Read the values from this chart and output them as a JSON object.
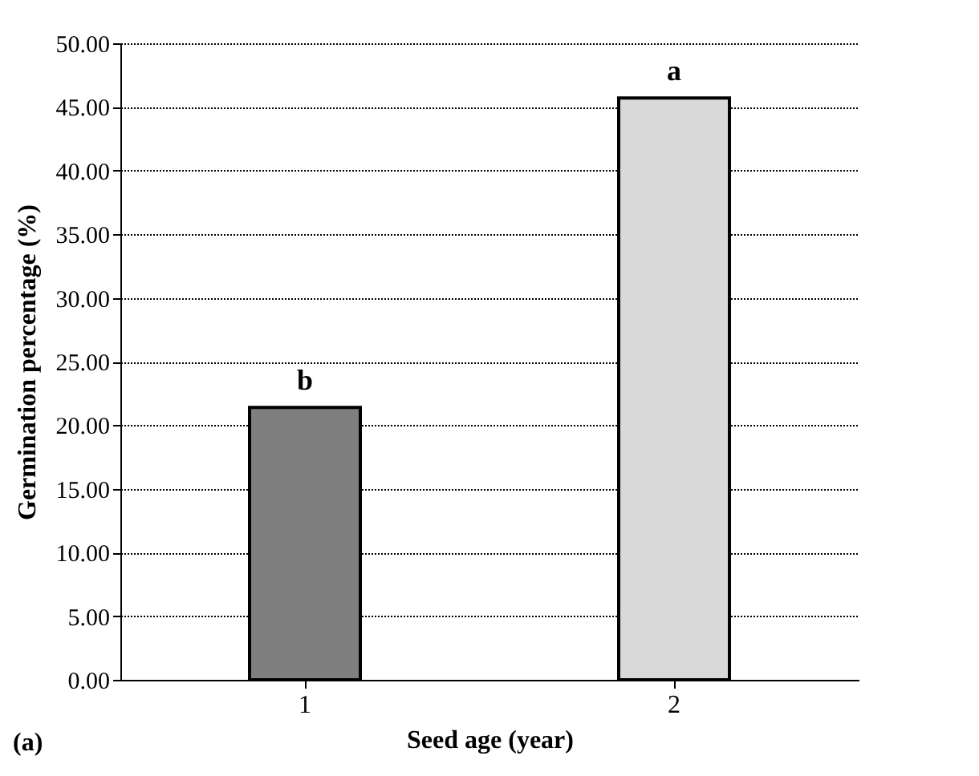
{
  "chart_data": {
    "type": "bar",
    "xlabel": "Seed age (year)",
    "ylabel": "Germination percentage (%)",
    "categories": [
      "1",
      "2"
    ],
    "values": [
      21.4,
      45.7
    ],
    "colors": [
      "#7f7f7f",
      "#d9d9d9"
    ],
    "ylim": [
      0,
      50
    ],
    "yticks": [
      {
        "value": 0,
        "label": "0.00"
      },
      {
        "value": 5,
        "label": "5.00"
      },
      {
        "value": 10,
        "label": "10.00"
      },
      {
        "value": 15,
        "label": "15.00"
      },
      {
        "value": 20,
        "label": "20.00"
      },
      {
        "value": 25,
        "label": "25.00"
      },
      {
        "value": 30,
        "label": "30.00"
      },
      {
        "value": 35,
        "label": "35.00"
      },
      {
        "value": 40,
        "label": "40.00"
      },
      {
        "value": 45,
        "label": "45.00"
      },
      {
        "value": 50,
        "label": "50.00"
      }
    ],
    "grid": "y",
    "annotations": [
      {
        "text": "b",
        "x": "1",
        "y": 21.4
      },
      {
        "text": "a",
        "x": "2",
        "y": 45.7
      },
      "(a)"
    ]
  }
}
